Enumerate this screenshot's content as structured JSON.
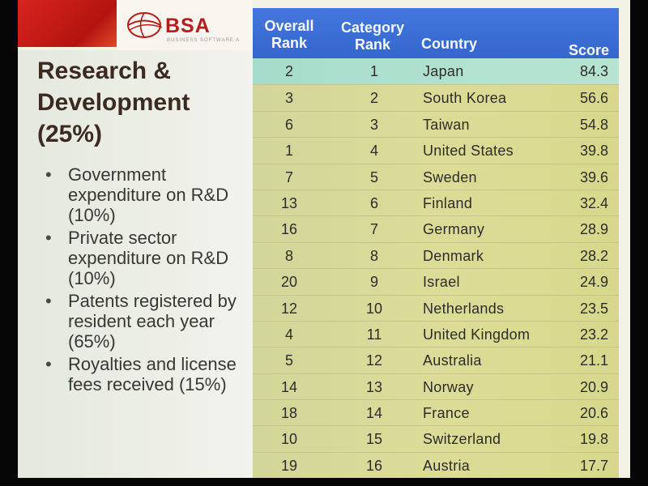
{
  "logo": {
    "text": "BSA",
    "subtext": "BUSINESS SOFTWARE A"
  },
  "heading": "Research & Development (25%)",
  "criteria": [
    "Government expenditure on R&D (10%)",
    "Private sector expenditure on R&D (10%)",
    "Patents registered by resident each year (65%)",
    "Royalties and license fees received (15%)"
  ],
  "table": {
    "headers": {
      "overall_rank": "Overall Rank",
      "category_rank": "Category Rank",
      "country": "Country",
      "score": "Score"
    },
    "rows": [
      {
        "overall": "2",
        "category": "1",
        "country": "Japan",
        "score": "84.3"
      },
      {
        "overall": "3",
        "category": "2",
        "country": "South Korea",
        "score": "56.6"
      },
      {
        "overall": "6",
        "category": "3",
        "country": "Taiwan",
        "score": "54.8"
      },
      {
        "overall": "1",
        "category": "4",
        "country": "United States",
        "score": "39.8"
      },
      {
        "overall": "7",
        "category": "5",
        "country": "Sweden",
        "score": "39.6"
      },
      {
        "overall": "13",
        "category": "6",
        "country": "Finland",
        "score": "32.4"
      },
      {
        "overall": "16",
        "category": "7",
        "country": "Germany",
        "score": "28.9"
      },
      {
        "overall": "8",
        "category": "8",
        "country": "Denmark",
        "score": "28.2"
      },
      {
        "overall": "20",
        "category": "9",
        "country": "Israel",
        "score": "24.9"
      },
      {
        "overall": "12",
        "category": "10",
        "country": "Netherlands",
        "score": "23.5"
      },
      {
        "overall": "4",
        "category": "11",
        "country": "United Kingdom",
        "score": "23.2"
      },
      {
        "overall": "5",
        "category": "12",
        "country": "Australia",
        "score": "21.1"
      },
      {
        "overall": "14",
        "category": "13",
        "country": "Norway",
        "score": "20.9"
      },
      {
        "overall": "18",
        "category": "14",
        "country": "France",
        "score": "20.6"
      },
      {
        "overall": "10",
        "category": "15",
        "country": "Switzerland",
        "score": "19.8"
      },
      {
        "overall": "19",
        "category": "16",
        "country": "Austria",
        "score": "17.7"
      }
    ],
    "highlight_index": 0
  },
  "colors": {
    "header_blue": "#3a6fd6",
    "row_olive": "#d8d896",
    "row_highlight": "#b0e0cf",
    "brand_red": "#b51d1d"
  }
}
